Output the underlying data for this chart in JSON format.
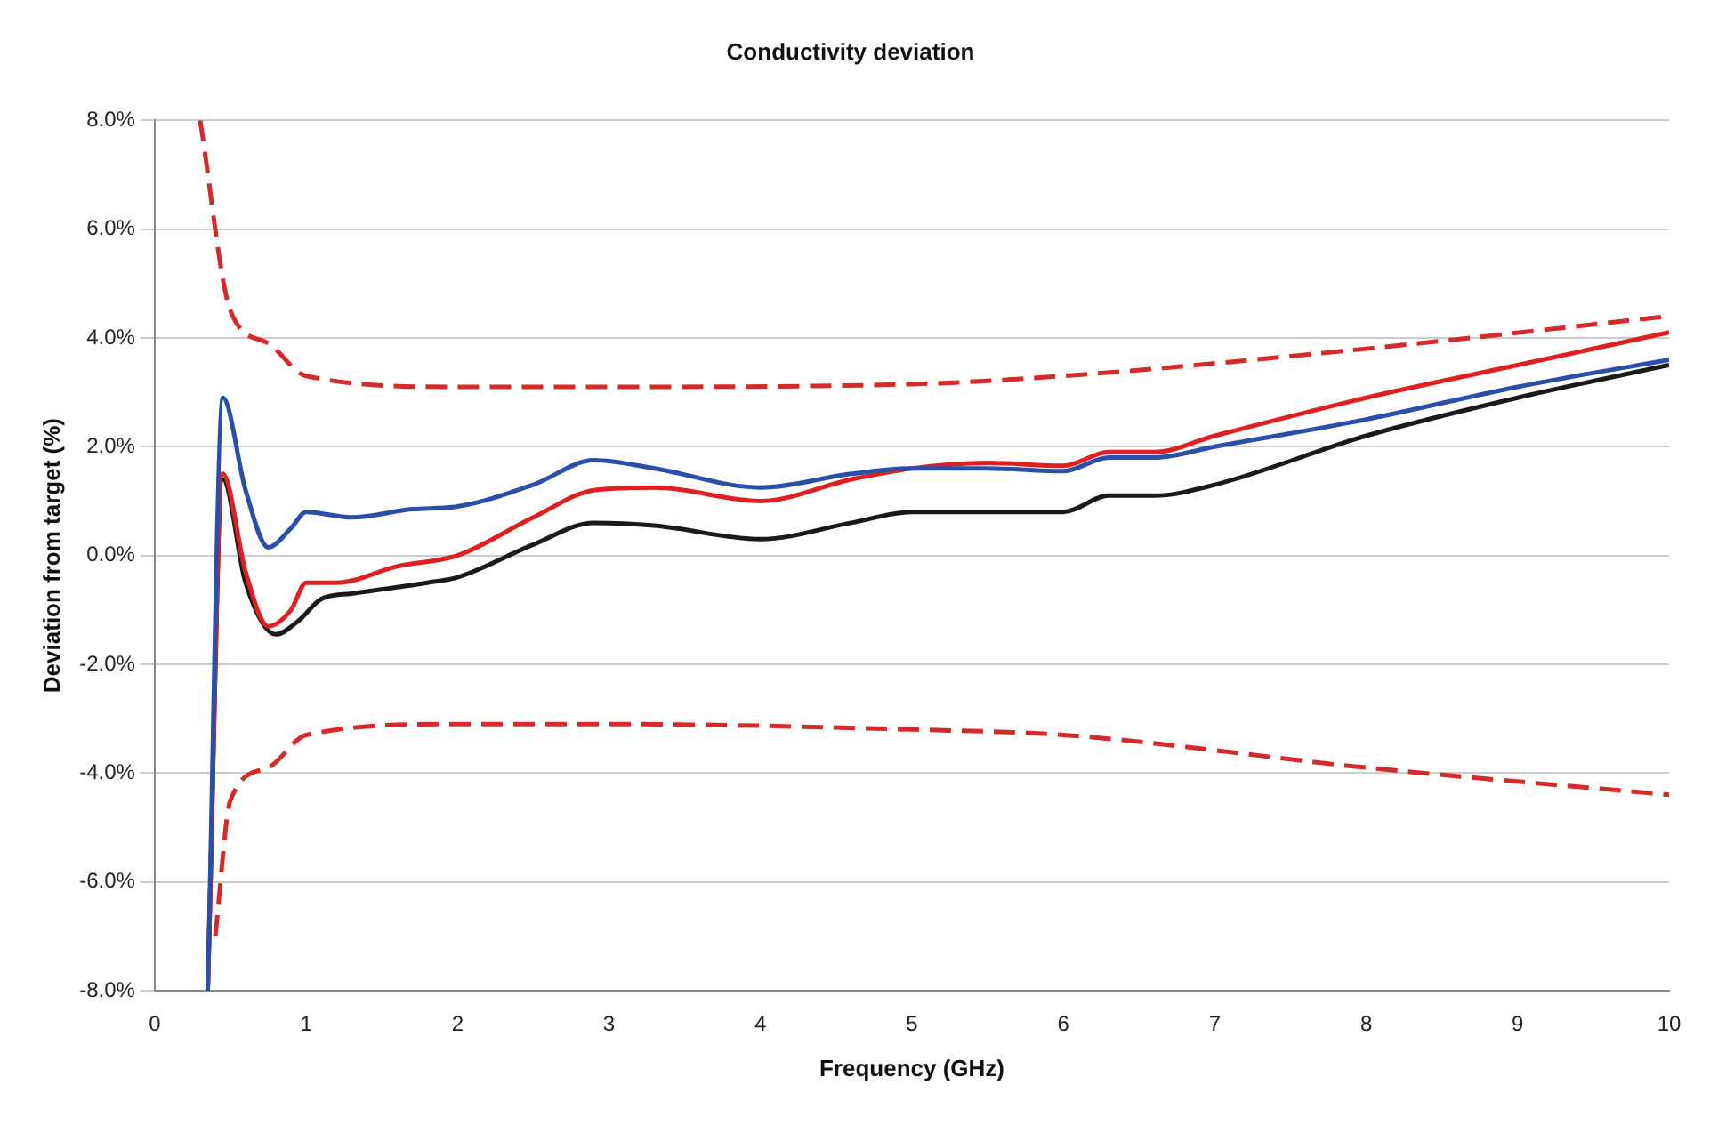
{
  "chart_data": {
    "type": "line",
    "title": "Conductivity deviation",
    "xlabel": "Frequency (GHz)",
    "ylabel": "Deviation from target (%)",
    "xlim": [
      0,
      10
    ],
    "xticks": [
      0,
      1,
      2,
      3,
      4,
      5,
      6,
      7,
      8,
      9,
      10
    ],
    "ylim": [
      -8,
      8
    ],
    "yticks": [
      {
        "value": -8,
        "label": "-8.0%"
      },
      {
        "value": -6,
        "label": "-6.0%"
      },
      {
        "value": -4,
        "label": "-4.0%"
      },
      {
        "value": -2,
        "label": "-2.0%"
      },
      {
        "value": 0,
        "label": "0.0%"
      },
      {
        "value": 2,
        "label": "2.0%"
      },
      {
        "value": 4,
        "label": "4.0%"
      },
      {
        "value": 6,
        "label": "6.0%"
      },
      {
        "value": 8,
        "label": "8.0%"
      }
    ],
    "grid": "y",
    "legend": false,
    "marker": "none",
    "series": [
      {
        "color": "#2a4fa8",
        "x": [
          0.35,
          0.45,
          0.6,
          0.75,
          0.9,
          1.0,
          1.3,
          1.7,
          2.0,
          2.5,
          2.9,
          3.3,
          4.0,
          4.6,
          5.0,
          5.5,
          6.0,
          6.3,
          6.6,
          7.0,
          8.0,
          9.0,
          10.0
        ],
        "values": [
          -8,
          2.9,
          1.2,
          0.15,
          0.5,
          0.8,
          0.7,
          0.85,
          0.9,
          1.3,
          1.75,
          1.6,
          1.25,
          1.5,
          1.6,
          1.6,
          1.55,
          1.8,
          1.8,
          2.0,
          2.5,
          3.1,
          3.6
        ]
      },
      {
        "color": "#e02020",
        "x": [
          0.35,
          0.45,
          0.6,
          0.75,
          0.9,
          1.0,
          1.2,
          1.6,
          2.0,
          2.5,
          2.9,
          3.3,
          4.0,
          4.6,
          5.0,
          5.5,
          6.0,
          6.3,
          6.6,
          7.0,
          8.0,
          9.0,
          10.0
        ],
        "values": [
          -8,
          1.5,
          -0.3,
          -1.3,
          -1.0,
          -0.5,
          -0.5,
          -0.2,
          0,
          0.7,
          1.2,
          1.25,
          1.0,
          1.4,
          1.6,
          1.7,
          1.65,
          1.9,
          1.9,
          2.2,
          2.9,
          3.5,
          4.1
        ]
      },
      {
        "color": "#1a1a1a",
        "x": [
          0.35,
          0.45,
          0.6,
          0.8,
          0.95,
          1.1,
          1.3,
          1.8,
          2.0,
          2.5,
          2.9,
          3.3,
          4.0,
          4.6,
          5.0,
          5.5,
          6.0,
          6.3,
          6.6,
          7.0,
          8.0,
          9.0,
          10.0
        ],
        "values": [
          -8,
          1.4,
          -0.5,
          -1.45,
          -1.2,
          -0.8,
          -0.7,
          -0.5,
          -0.4,
          0.2,
          0.6,
          0.55,
          0.3,
          0.6,
          0.8,
          0.8,
          0.8,
          1.1,
          1.1,
          1.3,
          2.2,
          2.9,
          3.5
        ]
      },
      {
        "color": "#d42a2a",
        "line_style": "dashed",
        "x": [
          0.3,
          0.5,
          0.75,
          1.0,
          2.0,
          3.0,
          5.0,
          6.0,
          8.0,
          10.0
        ],
        "values": [
          8.0,
          4.5,
          3.9,
          3.3,
          3.1,
          3.1,
          3.15,
          3.3,
          3.8,
          4.4
        ]
      },
      {
        "color": "#d42a2a",
        "line_style": "dashed",
        "x": [
          0.4,
          0.5,
          0.75,
          1.0,
          2.0,
          3.0,
          5.0,
          6.0,
          8.0,
          10.0
        ],
        "values": [
          -7.0,
          -4.5,
          -3.9,
          -3.3,
          -3.1,
          -3.1,
          -3.2,
          -3.3,
          -3.9,
          -4.4
        ]
      }
    ]
  }
}
